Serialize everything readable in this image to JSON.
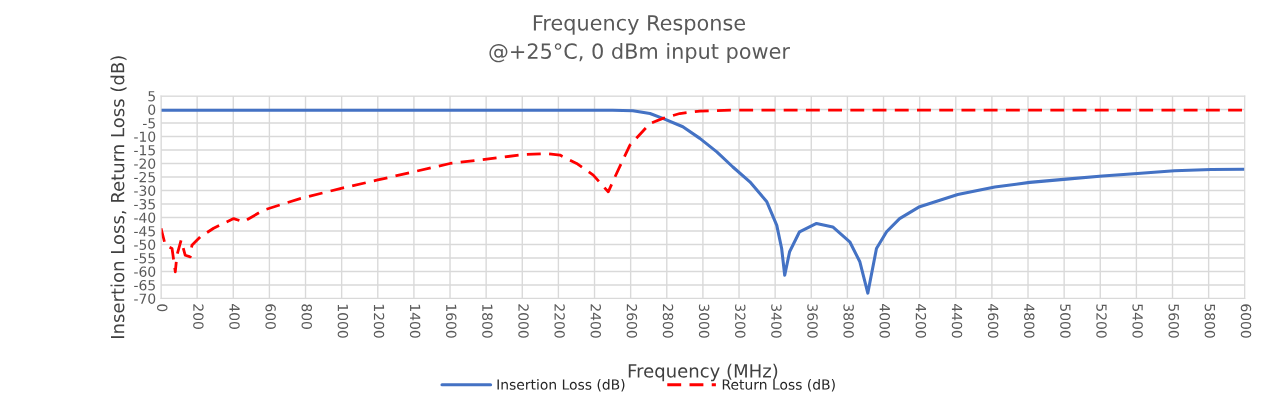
{
  "chart_data": {
    "type": "line",
    "title": "Frequency Response",
    "subtitle": "@+25°C, 0 dBm input power",
    "xlabel": "Frequency (MHz)",
    "ylabel": "Insertion Loss, Return Loss (dB)",
    "xlim": [
      0,
      6000
    ],
    "xticks": [
      0,
      200,
      400,
      600,
      800,
      1000,
      1200,
      1400,
      1600,
      1800,
      2000,
      2200,
      2400,
      2600,
      2800,
      3000,
      3200,
      3400,
      3600,
      3800,
      4000,
      4200,
      4400,
      4600,
      4800,
      5000,
      5200,
      5400,
      5600,
      5800,
      6000
    ],
    "ylim": [
      -70,
      5
    ],
    "yticks": [
      -70,
      -65,
      -60,
      -55,
      -50,
      -45,
      -40,
      -35,
      -30,
      -25,
      -20,
      -15,
      -10,
      -5,
      0,
      5
    ],
    "grid": true,
    "legend": "bottom",
    "marker": "none",
    "series": [
      {
        "name": "Insertion Loss (dB)",
        "color": "#4472c4",
        "line_style": "solid",
        "x": [
          0,
          1000,
          2000,
          2500,
          2612,
          2707,
          2778,
          2889,
          2983,
          3077,
          3166,
          3260,
          3354,
          3409,
          3436,
          3453,
          3480,
          3535,
          3629,
          3719,
          3813,
          3869,
          3913,
          3961,
          4017,
          4089,
          4200,
          4411,
          4616,
          4810,
          5013,
          5212,
          5406,
          5610,
          5815,
          6000
        ],
        "values": [
          -0.3,
          -0.3,
          -0.3,
          -0.3,
          -0.5,
          -1.5,
          -3.3,
          -6.4,
          -10.7,
          -15.7,
          -21.3,
          -26.8,
          -34.2,
          -42.9,
          -51.5,
          -61.4,
          -52.7,
          -45.3,
          -42.2,
          -43.5,
          -49,
          -56.4,
          -68,
          -51.5,
          -45.3,
          -40.4,
          -36,
          -31.5,
          -28.7,
          -27,
          -25.8,
          -24.6,
          -23.7,
          -22.7,
          -22.2,
          -22.1
        ]
      },
      {
        "name": "Return Loss (dB)",
        "color": "#ff0000",
        "line_style": "dashed",
        "x": [
          0,
          24,
          61,
          79,
          88,
          111,
          134,
          162,
          171,
          217,
          291,
          402,
          457,
          567,
          770,
          992,
          1194,
          1397,
          1600,
          1803,
          2006,
          2135,
          2209,
          2301,
          2393,
          2476,
          2522,
          2596,
          2707,
          2778,
          2872,
          2983,
          3166,
          4000,
          5000,
          6000
        ],
        "values": [
          -44,
          -50.3,
          -51.5,
          -60.1,
          -54,
          -48.4,
          -54,
          -54.6,
          -50.3,
          -47.2,
          -44,
          -40.4,
          -41.6,
          -37.3,
          -33,
          -29.3,
          -26.2,
          -23.1,
          -20,
          -18.4,
          -16.7,
          -16.3,
          -16.9,
          -20,
          -24.3,
          -30.5,
          -23.7,
          -13.2,
          -5.2,
          -3.3,
          -1.5,
          -0.6,
          -0.2,
          -0.2,
          -0.2,
          -0.2
        ]
      }
    ]
  }
}
